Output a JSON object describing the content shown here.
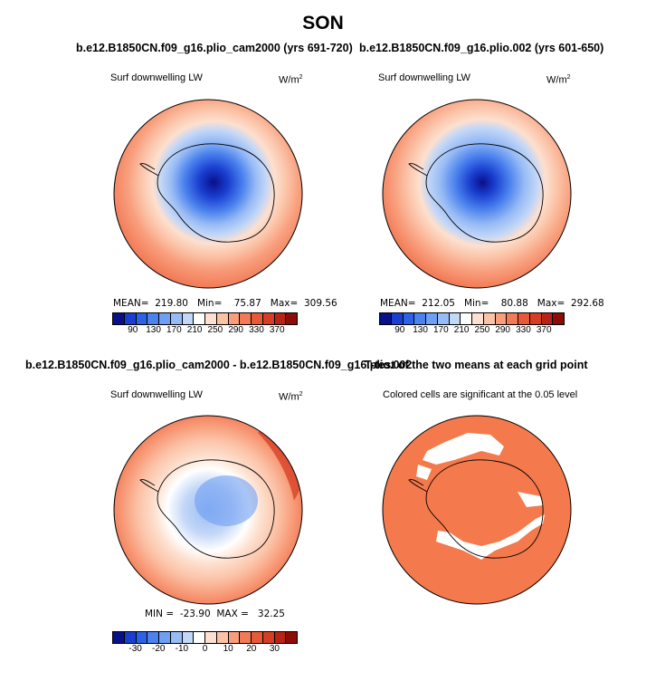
{
  "figure": {
    "title": "SON"
  },
  "panels": {
    "top_left": {
      "title": "b.e12.B1850CN.f09_g16.plio_cam2000 (yrs 691-720)",
      "subtitle": "Surf downwelling LW",
      "units": "W/m",
      "units_sup": "2",
      "stats": "MEAN=  219.80   Min=    75.87   Max=  309.56",
      "colorbar_ticks": [
        "90",
        "130",
        "170",
        "210",
        "250",
        "290",
        "330",
        "370"
      ]
    },
    "top_right": {
      "title": "b.e12.B1850CN.f09_g16.plio.002 (yrs 601-650)",
      "subtitle": "Surf downwelling LW",
      "units": "W/m",
      "units_sup": "2",
      "stats": "MEAN=  212.05   Min=    80.88   Max=  292.68",
      "colorbar_ticks": [
        "90",
        "130",
        "170",
        "210",
        "250",
        "290",
        "330",
        "370"
      ]
    },
    "bottom_left": {
      "title": "b.e12.B1850CN.f09_g16.plio_cam2000 - b.e12.B1850CN.f09_g16.plio.002",
      "subtitle": "Surf downwelling LW",
      "units": "W/m",
      "units_sup": "2",
      "stats": "MIN =  -23.90  MAX =   32.25",
      "colorbar_ticks": [
        "-30",
        "-20",
        "-10",
        "0",
        "10",
        "20",
        "30"
      ]
    },
    "bottom_right": {
      "title": "T-test of the two means at each grid point",
      "subtitle": "Colored cells are significant at the 0.05 level"
    }
  },
  "colors": {
    "abs_scale": [
      "#08108a",
      "#1a3fd0",
      "#2d62e6",
      "#4b82ee",
      "#6f9ff2",
      "#97bbf5",
      "#c3d7f7",
      "#ffffff",
      "#fde0cf",
      "#fbc2a6",
      "#f89e7c",
      "#f27a56",
      "#e85a36",
      "#d53e23",
      "#b82314",
      "#8c0d06"
    ],
    "diff_scale": [
      "#08108a",
      "#1a3fd0",
      "#2d62e6",
      "#4b82ee",
      "#6f9ff2",
      "#97bbf5",
      "#c3d7f7",
      "#ffffff",
      "#fde0cf",
      "#fbc2a6",
      "#f89e7c",
      "#f27a56",
      "#e85a36",
      "#d53e23",
      "#b82314",
      "#8c0d06"
    ],
    "significant": "#f4794c"
  }
}
